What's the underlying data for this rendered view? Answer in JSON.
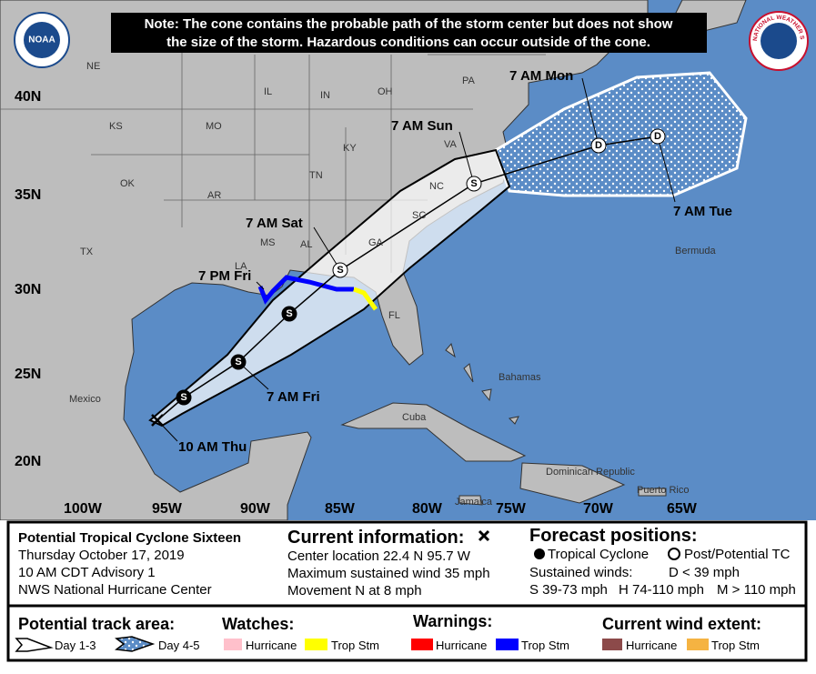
{
  "note": [
    "Note: The cone contains the probable path of the storm center but does not show",
    "the size of the storm. Hazardous conditions can occur outside of the cone."
  ],
  "logos": {
    "noaa": "NOAA",
    "nws": "NATIONAL WEATHER SERVICE"
  },
  "latitude_labels": [
    "40N",
    "35N",
    "30N",
    "25N",
    "20N"
  ],
  "longitude_labels": [
    "100W",
    "95W",
    "90W",
    "85W",
    "80W",
    "75W",
    "70W",
    "65W"
  ],
  "region_labels": [
    "NE",
    "IL",
    "IN",
    "OH",
    "PA",
    "KS",
    "MO",
    "KY",
    "VA",
    "OK",
    "AR",
    "TN",
    "NC",
    "SC",
    "TX",
    "MS",
    "AL",
    "GA",
    "LA",
    "FL",
    "Mexico",
    "Bermuda",
    "Bahamas",
    "Cuba",
    "Jamaica",
    "Dominican Republic",
    "Puerto Rico"
  ],
  "forecast_points": [
    {
      "marker": "S",
      "label": "7 AM Fri"
    },
    {
      "marker": "S",
      "label": "7 PM Fri"
    },
    {
      "marker": "S",
      "label": "7 AM Sat"
    },
    {
      "marker": "S",
      "label": "7 AM Sun"
    },
    {
      "marker": "D",
      "label": "7 AM Mon"
    },
    {
      "marker": "D",
      "label": "7 AM Tue"
    },
    {
      "marker": "S"
    }
  ],
  "current_position_label": "10 AM Thu",
  "storm_info": [
    "Potential Tropical Cyclone Sixteen",
    "Thursday October 17, 2019",
    "10 AM CDT Advisory 1",
    "NWS National Hurricane Center"
  ],
  "current_information": {
    "heading": "Current information:",
    "lines": [
      "Center location 22.4 N 95.7 W",
      "Maximum sustained wind 35 mph",
      "Movement N at 8 mph"
    ]
  },
  "forecast_positions": {
    "heading": "Forecast positions:",
    "tropical": "Tropical Cyclone",
    "post": "Post/Potential TC",
    "winds": "Sustained winds:",
    "d": "D < 39 mph",
    "s": "S 39-73 mph",
    "h": "H 74-110 mph",
    "m": "M > 110 mph"
  },
  "legend": {
    "track_area": "Potential track area:",
    "day13": "Day 1-3",
    "day45": "Day 4-5",
    "watches": "Watches:",
    "watch_hurricane": "Hurricane",
    "watch_trop": "Trop Stm",
    "warnings": "Warnings:",
    "warn_hurricane": "Hurricane",
    "warn_trop": "Trop Stm",
    "wind_extent": "Current wind extent:",
    "wind_hurricane": "Hurricane",
    "wind_trop": "Trop Stm"
  }
}
